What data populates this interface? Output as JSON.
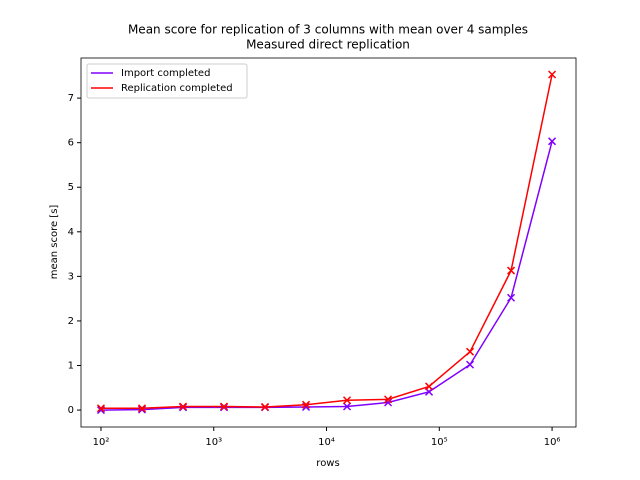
{
  "chart_data": {
    "type": "line",
    "title": "Mean score for replication of 3 columns with mean over 4 samples",
    "subtitle": "Measured direct replication",
    "x_label": "rows",
    "y_label": "mean score [s]",
    "x": [
      100,
      231,
      534,
      1233,
      2848,
      6579,
      15199,
      35112,
      81113,
      187382,
      432876,
      1000000
    ],
    "series": [
      {
        "name": "Import completed",
        "color": "#8000ff",
        "values": [
          0.0,
          0.01,
          0.06,
          0.06,
          0.06,
          0.07,
          0.08,
          0.17,
          0.41,
          1.02,
          2.52,
          6.03
        ]
      },
      {
        "name": "Replication completed",
        "color": "#ff0000",
        "values": [
          0.04,
          0.04,
          0.08,
          0.08,
          0.07,
          0.12,
          0.22,
          0.24,
          0.53,
          1.31,
          3.13,
          7.53
        ]
      }
    ],
    "xscale": "log",
    "xlim": [
      66.5,
      1630000
    ],
    "xticks": [
      {
        "value": 100,
        "label": "10²"
      },
      {
        "value": 1000,
        "label": "10³"
      },
      {
        "value": 10000,
        "label": "10⁴"
      },
      {
        "value": 100000,
        "label": "10⁵"
      },
      {
        "value": 1000000,
        "label": "10⁶"
      }
    ],
    "ylim": [
      -0.38,
      7.9
    ],
    "yticks": [
      0,
      1,
      2,
      3,
      4,
      5,
      6,
      7
    ],
    "legend": "upper left"
  }
}
